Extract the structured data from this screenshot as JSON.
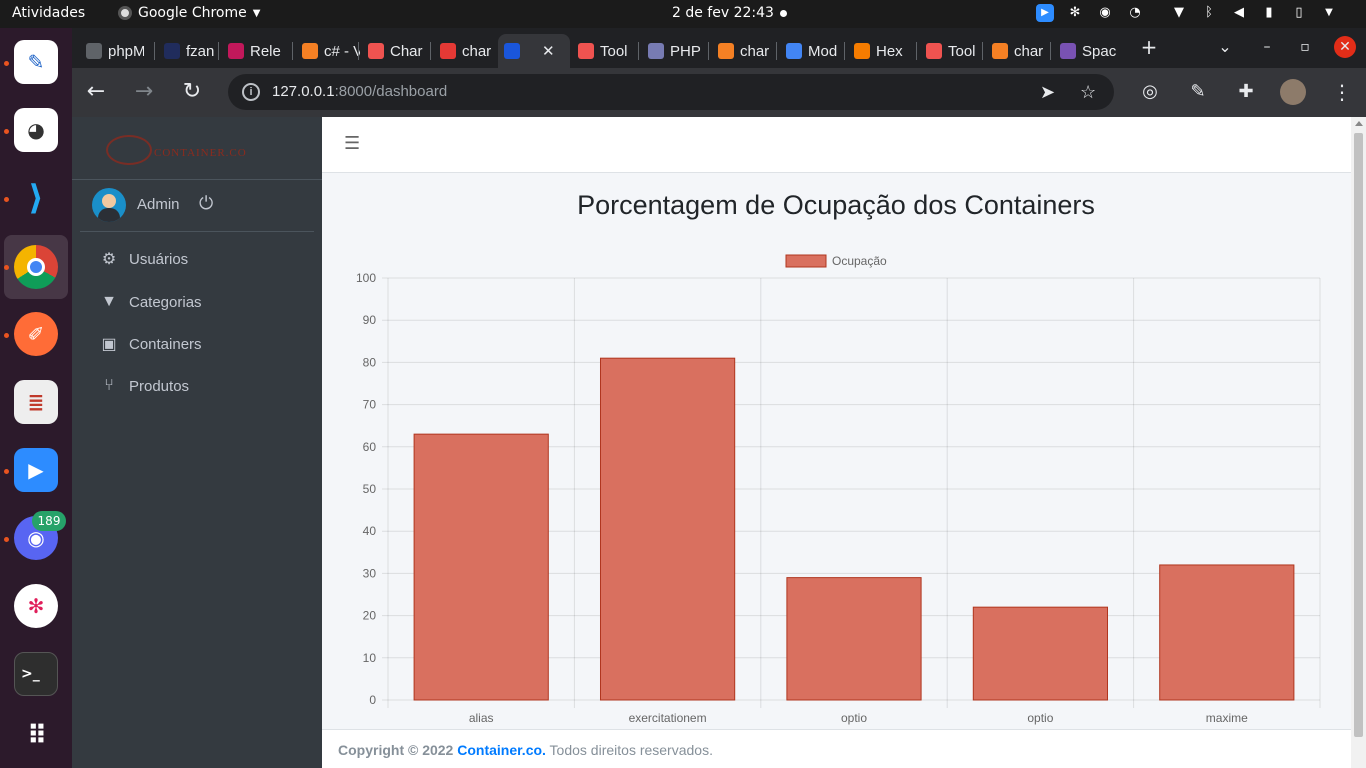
{
  "topbar": {
    "activities": "Atividades",
    "app_name": "Google Chrome",
    "clock": "2 de fev  22:43"
  },
  "tabs": [
    {
      "label": "phpM",
      "color": "#5f6368"
    },
    {
      "label": "fzan",
      "color": "#202c5c"
    },
    {
      "label": "Rele",
      "color": "#c2185b"
    },
    {
      "label": "c# - V",
      "color": "#f48024"
    },
    {
      "label": "Char",
      "color": "#ef5350"
    },
    {
      "label": "char",
      "color": "#e53935"
    },
    {
      "label": "",
      "color": "#1a56db"
    },
    {
      "label": "Tool",
      "color": "#ef5350"
    },
    {
      "label": "PHP",
      "color": "#777bb3"
    },
    {
      "label": "char",
      "color": "#f48024"
    },
    {
      "label": "Mod",
      "color": "#4285f4"
    },
    {
      "label": "Hex",
      "color": "#f57c00"
    },
    {
      "label": "Tool",
      "color": "#ef5350"
    },
    {
      "label": "char",
      "color": "#f48024"
    },
    {
      "label": "Spac",
      "color": "#7952b3"
    }
  ],
  "address": {
    "host": "127.0.0.1",
    "path": ":8000/dashboard"
  },
  "dock": {
    "discord_badge": "189"
  },
  "sidebar": {
    "brand": "CONTAINER.CO",
    "user": "Admin",
    "items": [
      {
        "label": "Usuários",
        "icon": "users-cog-icon"
      },
      {
        "label": "Categorias",
        "icon": "filter-icon"
      },
      {
        "label": "Containers",
        "icon": "box-icon"
      },
      {
        "label": "Produtos",
        "icon": "utensils-icon"
      }
    ]
  },
  "footer": {
    "copyright": "Copyright © 2022",
    "brand": "Container.co.",
    "rights": " Todos direitos reservados."
  },
  "chart_data": {
    "type": "bar",
    "title": "Porcentagem de Ocupação dos Containers",
    "categories": [
      "alias",
      "exercitationem",
      "optio",
      "optio",
      "maxime"
    ],
    "series": [
      {
        "name": "Ocupação",
        "values": [
          63,
          81,
          29,
          22,
          32
        ],
        "color": "#d9705f",
        "border": "#b0361f"
      }
    ],
    "ylim": [
      0,
      100
    ],
    "yticks": [
      0,
      10,
      20,
      30,
      40,
      50,
      60,
      70,
      80,
      90,
      100
    ],
    "grid": true,
    "legend": "top"
  }
}
